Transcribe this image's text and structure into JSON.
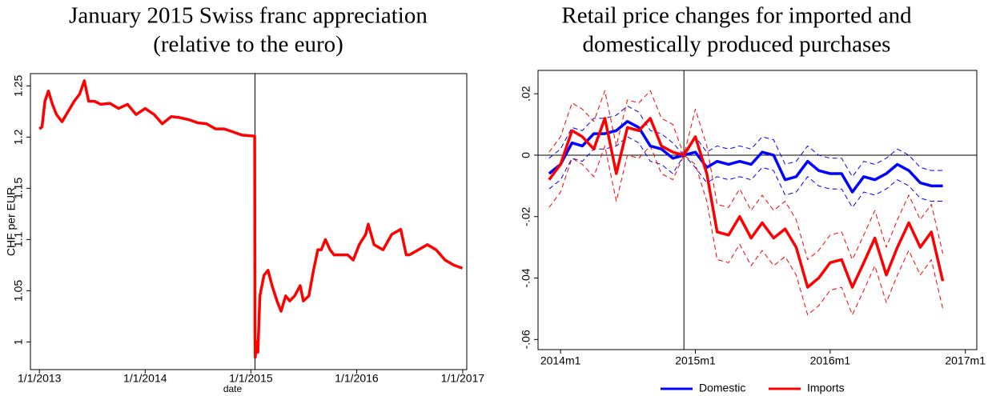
{
  "chart_data": [
    {
      "type": "line",
      "title": [
        "January 2015 Swiss franc appreciation",
        "(relative to the euro)"
      ],
      "xlabel": "date",
      "ylabel": "CHF per EUR",
      "x": [
        "2013-01-01",
        "2013-01-10",
        "2013-01-20",
        "2013-02-01",
        "2013-02-15",
        "2013-03-01",
        "2013-03-20",
        "2013-04-10",
        "2013-05-01",
        "2013-05-20",
        "2013-06-05",
        "2013-06-20",
        "2013-07-10",
        "2013-08-01",
        "2013-09-01",
        "2013-10-01",
        "2013-11-01",
        "2013-12-01",
        "2014-01-01",
        "2014-02-01",
        "2014-03-01",
        "2014-04-01",
        "2014-05-01",
        "2014-06-01",
        "2014-07-01",
        "2014-08-01",
        "2014-09-01",
        "2014-10-01",
        "2014-11-01",
        "2014-12-01",
        "2015-01-14",
        "2015-01-15",
        "2015-01-16",
        "2015-01-20",
        "2015-01-25",
        "2015-02-01",
        "2015-02-15",
        "2015-03-01",
        "2015-03-15",
        "2015-04-01",
        "2015-04-15",
        "2015-05-01",
        "2015-05-15",
        "2015-06-01",
        "2015-06-20",
        "2015-07-01",
        "2015-07-20",
        "2015-08-05",
        "2015-08-20",
        "2015-09-01",
        "2015-09-15",
        "2015-10-01",
        "2015-10-15",
        "2015-11-01",
        "2015-12-01",
        "2015-12-20",
        "2016-01-10",
        "2016-02-01",
        "2016-02-10",
        "2016-03-01",
        "2016-04-01",
        "2016-05-01",
        "2016-06-01",
        "2016-06-20",
        "2016-07-01",
        "2016-08-01",
        "2016-09-01",
        "2016-10-01",
        "2016-11-01",
        "2016-12-01",
        "2016-12-31"
      ],
      "series": [
        {
          "color": "#ff0000",
          "values": [
            1.208,
            1.21,
            1.235,
            1.245,
            1.232,
            1.222,
            1.215,
            1.225,
            1.235,
            1.242,
            1.255,
            1.235,
            1.235,
            1.232,
            1.233,
            1.228,
            1.232,
            1.222,
            1.228,
            1.222,
            1.213,
            1.22,
            1.219,
            1.217,
            1.214,
            1.213,
            1.208,
            1.208,
            1.205,
            1.202,
            1.201,
            1.01,
            0.985,
            1.0,
            0.99,
            1.045,
            1.065,
            1.07,
            1.055,
            1.04,
            1.03,
            1.045,
            1.04,
            1.045,
            1.055,
            1.04,
            1.045,
            1.07,
            1.09,
            1.09,
            1.1,
            1.09,
            1.085,
            1.085,
            1.085,
            1.08,
            1.095,
            1.105,
            1.115,
            1.095,
            1.09,
            1.105,
            1.11,
            1.085,
            1.085,
            1.09,
            1.095,
            1.09,
            1.08,
            1.075,
            1.072
          ]
        }
      ],
      "xlim": [
        "2012-12-01",
        "2017-01-15"
      ],
      "xticks": [
        {
          "value": "2013-01-01",
          "label": "1/1/2013"
        },
        {
          "value": "2014-01-01",
          "label": "1/1/2014"
        },
        {
          "value": "2015-01-01",
          "label": "1/1/2015"
        },
        {
          "value": "2016-01-01",
          "label": "1/1/2016"
        },
        {
          "value": "2017-01-01",
          "label": "1/1/2017"
        }
      ],
      "ylim": [
        0.973,
        1.262
      ],
      "yticks": [
        1,
        1.05,
        1.1,
        1.15,
        1.2,
        1.25
      ],
      "vline": "2015-01-15",
      "grid": false
    },
    {
      "type": "line",
      "title": [
        "Retail price changes for imported and",
        "domestically produced purchases"
      ],
      "x": [
        "2013-12",
        "2014-01",
        "2014-02",
        "2014-03",
        "2014-04",
        "2014-05",
        "2014-06",
        "2014-07",
        "2014-08",
        "2014-09",
        "2014-10",
        "2014-11",
        "2014-12",
        "2015-01",
        "2015-02",
        "2015-03",
        "2015-04",
        "2015-05",
        "2015-06",
        "2015-07",
        "2015-08",
        "2015-09",
        "2015-10",
        "2015-11",
        "2015-12",
        "2016-01",
        "2016-02",
        "2016-03",
        "2016-04",
        "2016-05",
        "2016-06",
        "2016-07",
        "2016-08",
        "2016-09",
        "2016-10",
        "2016-11"
      ],
      "series": [
        {
          "name": "Domestic",
          "color": "#0000ff",
          "values": [
            -0.006,
            -0.003,
            0.004,
            0.003,
            0.007,
            0.007,
            0.008,
            0.011,
            0.009,
            0.003,
            0.002,
            -0.001,
            0,
            0.001,
            -0.004,
            -0.002,
            -0.003,
            -0.002,
            -0.003,
            0.001,
            0,
            -0.008,
            -0.007,
            -0.002,
            -0.005,
            -0.006,
            -0.006,
            -0.012,
            -0.007,
            -0.008,
            -0.006,
            -0.003,
            -0.005,
            -0.009,
            -0.01,
            -0.01
          ],
          "ci_upper": [
            -0.001,
            0.002,
            0.009,
            0.008,
            0.012,
            0.012,
            0.013,
            0.016,
            0.014,
            0.008,
            0.007,
            0.004,
            0,
            0.006,
            0.001,
            0.003,
            0.002,
            0.003,
            0.002,
            0.006,
            0.005,
            -0.003,
            -0.002,
            0.003,
            0,
            -0.001,
            -0.001,
            -0.007,
            -0.002,
            -0.003,
            -0.001,
            0.002,
            0,
            -0.004,
            -0.005,
            -0.005
          ],
          "ci_lower": [
            -0.011,
            -0.008,
            -0.001,
            -0.002,
            0.002,
            0.002,
            0.003,
            0.006,
            0.004,
            -0.002,
            -0.003,
            -0.006,
            0,
            -0.004,
            -0.009,
            -0.007,
            -0.008,
            -0.007,
            -0.008,
            -0.004,
            -0.005,
            -0.013,
            -0.012,
            -0.007,
            -0.01,
            -0.011,
            -0.011,
            -0.017,
            -0.012,
            -0.013,
            -0.011,
            -0.008,
            -0.01,
            -0.014,
            -0.015,
            -0.015
          ]
        },
        {
          "name": "Imports",
          "color": "#ff0000",
          "values": [
            -0.008,
            -0.003,
            0.008,
            0.006,
            0.002,
            0.012,
            -0.006,
            0.009,
            0.008,
            0.012,
            0.003,
            0.001,
            0,
            0.006,
            -0.006,
            -0.025,
            -0.026,
            -0.02,
            -0.027,
            -0.022,
            -0.027,
            -0.024,
            -0.03,
            -0.043,
            -0.04,
            -0.035,
            -0.034,
            -0.043,
            -0.035,
            -0.027,
            -0.039,
            -0.03,
            -0.022,
            -0.03,
            -0.025,
            -0.041
          ],
          "ci_upper": [
            0.001,
            0.006,
            0.017,
            0.015,
            0.011,
            0.021,
            0.003,
            0.018,
            0.017,
            0.021,
            0.012,
            0.01,
            0,
            0.015,
            0.003,
            -0.016,
            -0.017,
            -0.011,
            -0.018,
            -0.013,
            -0.018,
            -0.015,
            -0.021,
            -0.034,
            -0.031,
            -0.026,
            -0.025,
            -0.034,
            -0.026,
            -0.018,
            -0.03,
            -0.021,
            -0.013,
            -0.021,
            -0.016,
            -0.032
          ],
          "ci_lower": [
            -0.017,
            -0.012,
            -0.001,
            -0.003,
            -0.007,
            0.003,
            -0.015,
            0,
            -0.001,
            0.003,
            -0.006,
            -0.008,
            0,
            -0.003,
            -0.015,
            -0.034,
            -0.035,
            -0.029,
            -0.036,
            -0.031,
            -0.036,
            -0.033,
            -0.039,
            -0.052,
            -0.049,
            -0.044,
            -0.043,
            -0.052,
            -0.044,
            -0.036,
            -0.048,
            -0.039,
            -0.031,
            -0.039,
            -0.034,
            -0.05
          ]
        }
      ],
      "xlim": [
        "2013-11",
        "2017-02"
      ],
      "xticks": [
        {
          "value": "2014-01",
          "label": "2014m1"
        },
        {
          "value": "2015-01",
          "label": "2015m1"
        },
        {
          "value": "2016-01",
          "label": "2016m1"
        },
        {
          "value": "2017-01",
          "label": "2017m1"
        }
      ],
      "ylim": [
        -0.0633,
        0.0276
      ],
      "yticks": [
        {
          "value": 0.02,
          "label": ".02"
        },
        0,
        {
          "value": -0.02,
          "label": "-.02"
        },
        {
          "value": -0.04,
          "label": "-.04"
        },
        {
          "value": -0.06,
          "label": "-.06"
        }
      ],
      "vline": "2014-12",
      "hline": 0,
      "legend": "bottom",
      "grid": false
    }
  ]
}
